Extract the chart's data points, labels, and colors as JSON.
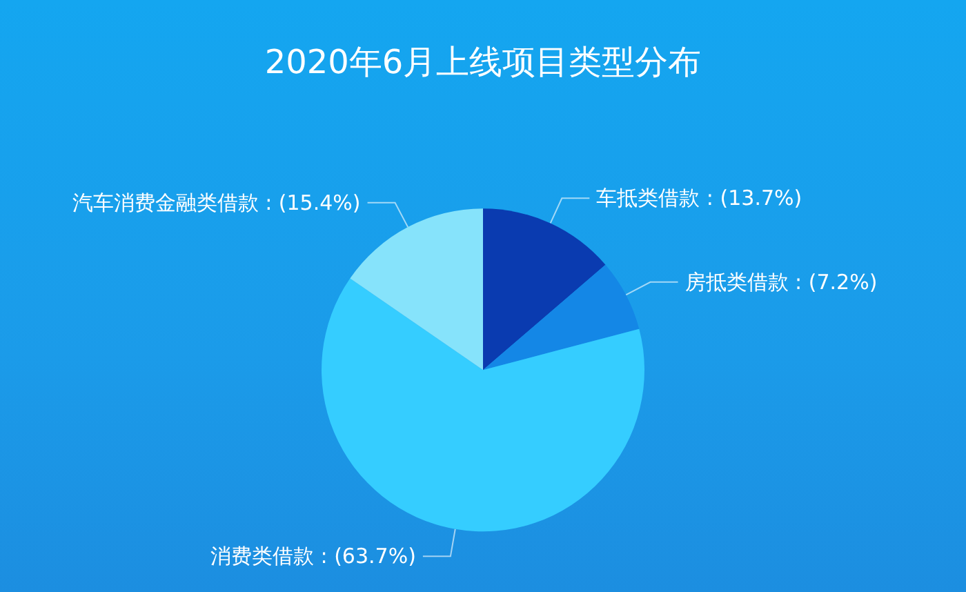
{
  "chart_data": {
    "type": "pie",
    "title": "2020年6月上线项目类型分布",
    "categories": [
      "车抵类借款",
      "房抵类借款",
      "消费类借款",
      "汽车消费金融类借款"
    ],
    "values": [
      13.7,
      7.2,
      63.7,
      15.4
    ],
    "value_labels": [
      ": (13.7%)",
      ": (7.2%)",
      ": (63.7%)",
      ": (15.4%)"
    ],
    "colors": [
      "#0a3bb0",
      "#1487e6",
      "#35cdff",
      "#86e3fb"
    ],
    "legend": false
  }
}
